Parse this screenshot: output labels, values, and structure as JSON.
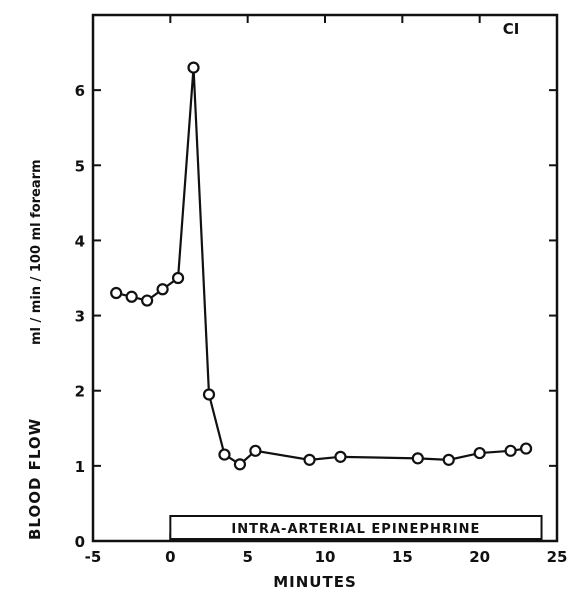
{
  "chart_data": {
    "type": "line",
    "panel_label": "CI",
    "xlabel": "MINUTES",
    "ylabel": "BLOOD FLOW",
    "ylabel_unit": "ml / min / 100 ml forearm",
    "xlim": [
      -5,
      25
    ],
    "ylim": [
      0,
      7
    ],
    "x_ticks": [
      -5,
      0,
      5,
      10,
      15,
      20,
      25
    ],
    "y_ticks": [
      0,
      1,
      2,
      3,
      4,
      5,
      6
    ],
    "grid": false,
    "infusion": {
      "label": "INTRA-ARTERIAL EPINEPHRINE",
      "x_start": 0,
      "x_end": 24
    },
    "series": [
      {
        "x": [
          -3.5,
          -2.5,
          -1.5,
          -0.5,
          0.5,
          1.5,
          2.5,
          3.5,
          4.5,
          5.5,
          9,
          11,
          16,
          18,
          20,
          22,
          23
        ],
        "y": [
          3.3,
          3.25,
          3.2,
          3.35,
          3.5,
          6.3,
          1.95,
          1.15,
          1.02,
          1.2,
          1.08,
          1.12,
          1.1,
          1.08,
          1.17,
          1.2,
          1.23
        ]
      }
    ]
  }
}
